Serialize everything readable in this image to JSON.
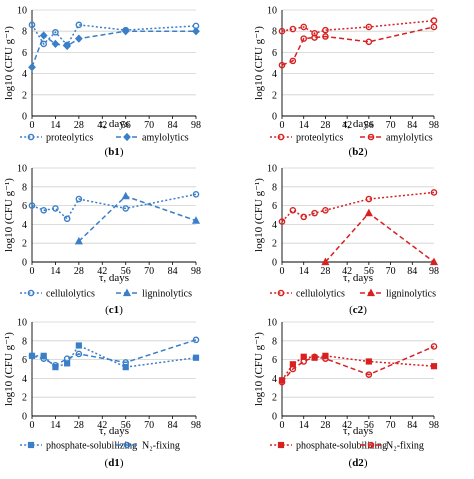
{
  "colors": {
    "blue": "#3A7FC8",
    "red": "#D92020",
    "axis": "#000000",
    "grid": "#D0D0D0"
  },
  "shared": {
    "ylabel": "log10 (CFU g⁻¹)",
    "xlabel": "τ, days",
    "xticks": [
      0,
      14,
      28,
      42,
      56,
      70,
      84,
      98
    ],
    "yticks": [
      0,
      2,
      4,
      6,
      8,
      10
    ]
  },
  "chart_data": [
    {
      "type": "line",
      "panel": "b1",
      "color": "blue",
      "xlabel": "τ, days",
      "ylabel": "log10 (CFU g⁻¹)",
      "xlim": [
        0,
        98
      ],
      "ylim": [
        0,
        10
      ],
      "grid": "horizontal",
      "legend_position": "bottom",
      "series": [
        {
          "name": "proteolytics",
          "marker": "circle",
          "dash": "dotted",
          "x": [
            0,
            7,
            14,
            21,
            28,
            56,
            98
          ],
          "y": [
            8.6,
            6.8,
            7.9,
            6.7,
            8.6,
            8.1,
            8.5
          ]
        },
        {
          "name": "amylolytics",
          "marker": "diamond",
          "dash": "dashed",
          "x": [
            0,
            7,
            14,
            21,
            28,
            56,
            98
          ],
          "y": [
            4.6,
            7.6,
            6.8,
            6.6,
            7.3,
            8.0,
            8.0
          ]
        }
      ]
    },
    {
      "type": "line",
      "panel": "b2",
      "color": "red",
      "xlabel": "τ, days",
      "ylabel": "log10 (CFU g⁻¹)",
      "xlim": [
        0,
        98
      ],
      "ylim": [
        0,
        10
      ],
      "grid": "horizontal",
      "legend_position": "bottom",
      "series": [
        {
          "name": "proteolytics",
          "marker": "circle",
          "dash": "dotted",
          "x": [
            0,
            7,
            14,
            21,
            28,
            56,
            98
          ],
          "y": [
            8.0,
            8.2,
            8.4,
            7.8,
            8.1,
            8.4,
            9.0
          ]
        },
        {
          "name": "amylolytics",
          "marker": "circle",
          "dash": "dashed",
          "x": [
            0,
            7,
            14,
            21,
            28,
            56,
            98
          ],
          "y": [
            4.8,
            5.2,
            7.3,
            7.4,
            7.5,
            7.0,
            8.4
          ]
        }
      ]
    },
    {
      "type": "line",
      "panel": "c1",
      "color": "blue",
      "xlabel": "τ, days",
      "ylabel": "log10 (CFU g⁻¹)",
      "xlim": [
        0,
        98
      ],
      "ylim": [
        0,
        10
      ],
      "grid": "horizontal",
      "legend_position": "bottom",
      "series": [
        {
          "name": "cellulolytics",
          "marker": "circle",
          "dash": "dotted",
          "x": [
            0,
            7,
            14,
            21,
            28,
            56,
            98
          ],
          "y": [
            6.0,
            5.5,
            5.7,
            4.6,
            6.7,
            5.7,
            7.2
          ]
        },
        {
          "name": "ligninolytics",
          "marker": "triangle",
          "dash": "dashed",
          "x": [
            28,
            56,
            98
          ],
          "y": [
            2.2,
            7.0,
            4.4
          ]
        }
      ]
    },
    {
      "type": "line",
      "panel": "c2",
      "color": "red",
      "xlabel": "τ, days",
      "ylabel": "log10 (CFU g⁻¹)",
      "xlim": [
        0,
        98
      ],
      "ylim": [
        0,
        10
      ],
      "grid": "horizontal",
      "legend_position": "bottom",
      "series": [
        {
          "name": "cellulolytics",
          "marker": "circle",
          "dash": "dotted",
          "x": [
            0,
            7,
            14,
            21,
            28,
            56,
            98
          ],
          "y": [
            4.3,
            5.5,
            4.8,
            5.2,
            5.5,
            6.7,
            7.4
          ]
        },
        {
          "name": "ligninolytics",
          "marker": "triangle",
          "dash": "dashed",
          "x": [
            28,
            56,
            98
          ],
          "y": [
            0.0,
            5.2,
            0.0
          ]
        }
      ]
    },
    {
      "type": "line",
      "panel": "d1",
      "color": "blue",
      "xlabel": "τ, days",
      "ylabel": "log10 (CFU g⁻¹)",
      "xlim": [
        0,
        98
      ],
      "ylim": [
        0,
        10
      ],
      "grid": "horizontal",
      "legend_position": "bottom",
      "series": [
        {
          "name": "phosphate-solubilizing",
          "marker": "square",
          "dash": "dotted",
          "x": [
            0,
            7,
            14,
            21,
            28,
            56,
            98
          ],
          "y": [
            6.4,
            6.4,
            5.2,
            5.6,
            7.5,
            5.2,
            6.2
          ]
        },
        {
          "name": "N₂-fixing",
          "marker": "circle",
          "dash": "dashed",
          "x": [
            0,
            7,
            14,
            21,
            28,
            56,
            98
          ],
          "y": [
            6.4,
            6.1,
            5.4,
            6.1,
            6.6,
            5.7,
            8.1
          ]
        }
      ]
    },
    {
      "type": "line",
      "panel": "d2",
      "color": "red",
      "xlabel": "τ, days",
      "ylabel": "log10 (CFU g⁻¹)",
      "xlim": [
        0,
        98
      ],
      "ylim": [
        0,
        10
      ],
      "grid": "horizontal",
      "legend_position": "bottom",
      "series": [
        {
          "name": "phosphate-solubilizing",
          "marker": "square",
          "dash": "dotted",
          "x": [
            0,
            7,
            14,
            21,
            28,
            56,
            98
          ],
          "y": [
            3.8,
            5.5,
            6.3,
            6.2,
            6.4,
            5.8,
            5.3
          ]
        },
        {
          "name": "N₂-fixing",
          "marker": "circle",
          "dash": "dashed",
          "x": [
            0,
            7,
            14,
            21,
            28,
            56,
            98
          ],
          "y": [
            3.6,
            5.0,
            5.8,
            6.3,
            6.1,
            4.4,
            7.4
          ]
        }
      ]
    }
  ]
}
